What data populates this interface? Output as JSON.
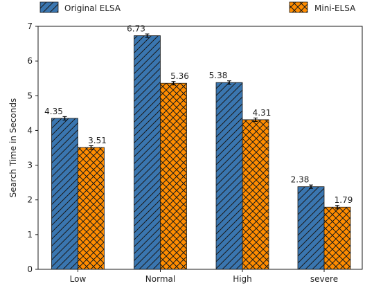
{
  "chart_data": {
    "type": "bar",
    "title": "",
    "xlabel": "",
    "ylabel": "Search Time in Seconds",
    "categories": [
      "Low",
      "Normal",
      "High",
      "severe"
    ],
    "ylim": [
      0,
      7
    ],
    "yticks": [
      0,
      1,
      2,
      3,
      4,
      5,
      6,
      7
    ],
    "grid": false,
    "legend_position": "top",
    "series": [
      {
        "name": "Original ELSA",
        "values": [
          4.35,
          6.73,
          5.38,
          2.38
        ],
        "labels": [
          "4.35",
          "6.73",
          "5.38",
          "2.38"
        ],
        "color": "#3a76b0",
        "hatch": "diagonal",
        "error": [
          0.05,
          0.05,
          0.05,
          0.05
        ]
      },
      {
        "name": "Mini-ELSA",
        "values": [
          3.51,
          5.36,
          4.31,
          1.79
        ],
        "labels": [
          "3.51",
          "5.36",
          "4.31",
          "1.79"
        ],
        "color": "#ff8c00",
        "hatch": "crosshatch",
        "error": [
          0.05,
          0.05,
          0.05,
          0.05
        ]
      }
    ]
  }
}
